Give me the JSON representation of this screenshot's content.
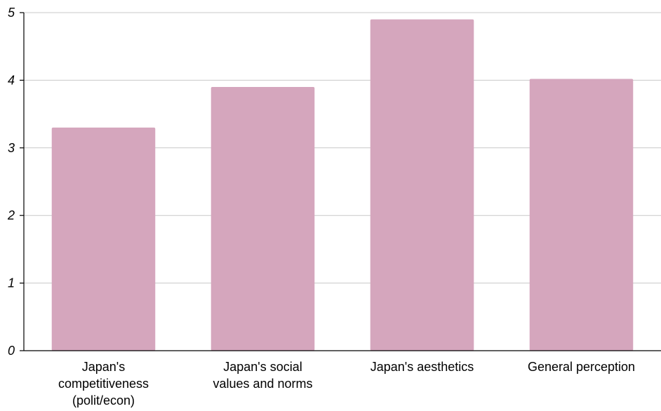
{
  "chart_data": {
    "type": "bar",
    "title": "",
    "xlabel": "",
    "ylabel": "",
    "categories": [
      [
        "Japan's",
        "competitiveness",
        "(polit/econ)"
      ],
      [
        "Japan's social",
        "values and norms"
      ],
      [
        "Japan's aesthetics"
      ],
      [
        "General perception"
      ]
    ],
    "values": [
      3.3,
      3.9,
      4.9,
      4.02
    ],
    "ylim": [
      0,
      5
    ],
    "yticks": [
      "0",
      "1",
      "2",
      "3",
      "4",
      "5"
    ],
    "grid": true,
    "legend": "none",
    "bar_color": "#d5a6bd",
    "grid_color": "#c8c8c8",
    "axis_color": "#000000"
  }
}
